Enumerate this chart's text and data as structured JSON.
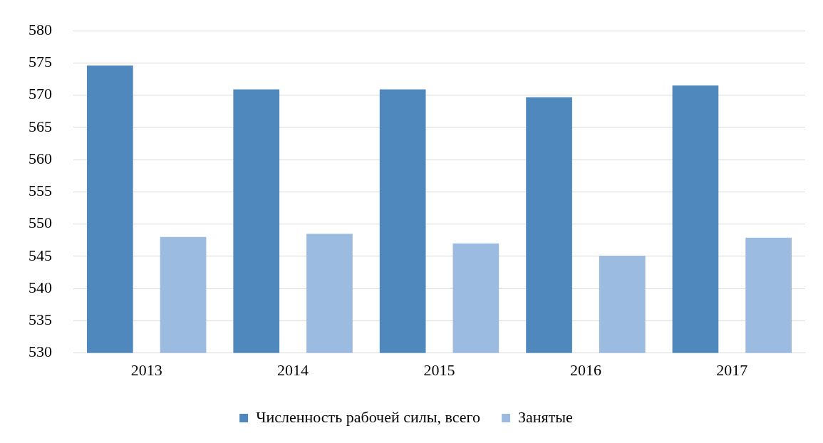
{
  "chart_data": {
    "type": "bar",
    "categories": [
      "2013",
      "2014",
      "2015",
      "2016",
      "2017"
    ],
    "series": [
      {
        "name": "Численность рабочей силы, всего",
        "color": "#4f88bd",
        "values": [
          574.6,
          570.9,
          570.9,
          569.7,
          571.5
        ]
      },
      {
        "name": "Занятые",
        "color": "#9bbbe0",
        "values": [
          548.0,
          548.5,
          547.0,
          545.1,
          547.9
        ]
      }
    ],
    "ylim": [
      530,
      580
    ],
    "yticks": [
      530,
      535,
      540,
      545,
      550,
      555,
      560,
      565,
      570,
      575,
      580
    ],
    "grid": "y",
    "legend": "bottom"
  }
}
